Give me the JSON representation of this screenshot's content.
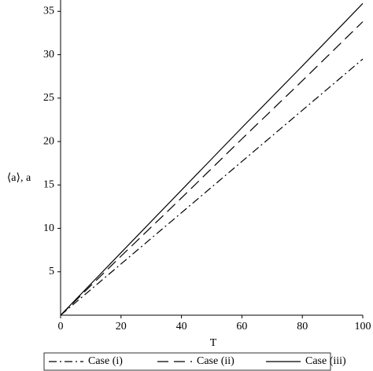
{
  "chart_data": {
    "type": "line",
    "x_label": "T",
    "y_label": "⟨a⟩, a",
    "x": [
      0,
      20,
      40,
      60,
      80,
      100
    ],
    "series": [
      {
        "name": "Case (i)",
        "color": "#000000",
        "values": [
          0,
          5.9,
          11.8,
          17.7,
          23.6,
          29.5
        ]
      },
      {
        "name": "Case (ii)",
        "color": "#000000",
        "values": [
          0,
          6.8,
          13.5,
          20.3,
          27.0,
          33.8
        ]
      },
      {
        "name": "Case (iii)",
        "color": "#000000",
        "values": [
          0,
          7.2,
          14.4,
          21.6,
          28.7,
          35.9
        ]
      }
    ],
    "xlim": [
      0,
      100
    ],
    "xticks": [
      0,
      20,
      40,
      60,
      80,
      100
    ],
    "ylim": [
      0,
      36.3
    ],
    "yticks": [
      5,
      10,
      15,
      20,
      25,
      30,
      35
    ],
    "legend": "bottom"
  }
}
